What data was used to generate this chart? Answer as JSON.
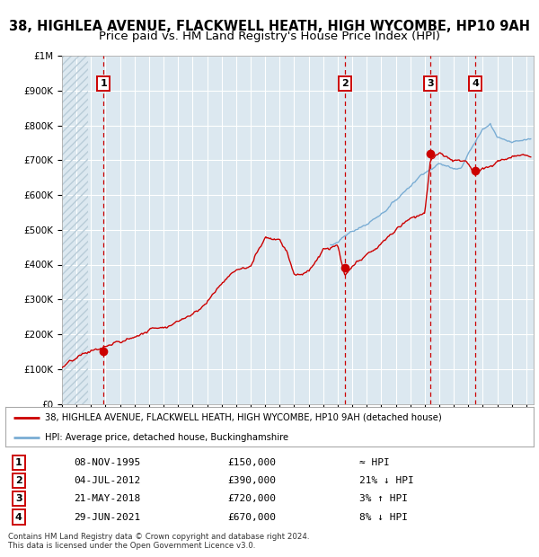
{
  "title1": "38, HIGHLEA AVENUE, FLACKWELL HEATH, HIGH WYCOMBE, HP10 9AH",
  "title2": "Price paid vs. HM Land Registry's House Price Index (HPI)",
  "ylim": [
    0,
    1000000
  ],
  "xlim_start": 1993.0,
  "xlim_end": 2025.5,
  "background_color": "#dce8f0",
  "hatch_color": "#b8ccd8",
  "sale_dates": [
    1995.856,
    2012.504,
    2018.388,
    2021.493
  ],
  "sale_prices": [
    150000,
    390000,
    720000,
    670000
  ],
  "sale_labels": [
    "1",
    "2",
    "3",
    "4"
  ],
  "legend_line1": "38, HIGHLEA AVENUE, FLACKWELL HEATH, HIGH WYCOMBE, HP10 9AH (detached house)",
  "legend_line2": "HPI: Average price, detached house, Buckinghamshire",
  "table_rows": [
    [
      "1",
      "08-NOV-1995",
      "£150,000",
      "≈ HPI"
    ],
    [
      "2",
      "04-JUL-2012",
      "£390,000",
      "21% ↓ HPI"
    ],
    [
      "3",
      "21-MAY-2018",
      "£720,000",
      "3% ↑ HPI"
    ],
    [
      "4",
      "29-JUN-2021",
      "£670,000",
      "8% ↓ HPI"
    ]
  ],
  "footnote": "Contains HM Land Registry data © Crown copyright and database right 2024.\nThis data is licensed under the Open Government Licence v3.0.",
  "hpi_color": "#7aadd4",
  "price_color": "#cc0000",
  "vline_color": "#cc0000",
  "title_fontsize": 10.5,
  "subtitle_fontsize": 9.5,
  "tick_fontsize": 7.5,
  "label_fontsize": 8
}
